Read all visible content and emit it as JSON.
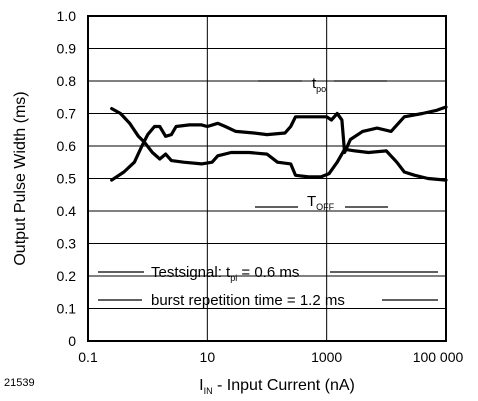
{
  "figure_id": "21539",
  "chart_data": {
    "type": "line",
    "title": "",
    "xlabel": {
      "main": "I",
      "sub": "IN",
      "rest": " - Input Current (nA)"
    },
    "ylabel": "Output Pulse Width (ms)",
    "x_scale": "log",
    "xlim": [
      0.1,
      100000
    ],
    "ylim": [
      0,
      1.0
    ],
    "x_ticks": [
      {
        "value": 0.1,
        "label": "0.1"
      },
      {
        "value": 10,
        "label": "10"
      },
      {
        "value": 1000,
        "label": "1000"
      },
      {
        "value": 100000,
        "label": "100 000"
      }
    ],
    "y_ticks": [
      {
        "value": 0,
        "label": "0"
      },
      {
        "value": 0.1,
        "label": "0.1"
      },
      {
        "value": 0.2,
        "label": "0.2"
      },
      {
        "value": 0.3,
        "label": "0.3"
      },
      {
        "value": 0.4,
        "label": "0.4"
      },
      {
        "value": 0.5,
        "label": "0.5"
      },
      {
        "value": 0.6,
        "label": "0.6"
      },
      {
        "value": 0.7,
        "label": "0.7"
      },
      {
        "value": 0.8,
        "label": "0.8"
      },
      {
        "value": 0.9,
        "label": "0.9"
      },
      {
        "value": 1.0,
        "label": "1.0"
      }
    ],
    "grid": true,
    "series": [
      {
        "label": {
          "main": "t",
          "sub": "po"
        },
        "points": [
          [
            0.25,
            0.495
          ],
          [
            0.4,
            0.52
          ],
          [
            0.6,
            0.55
          ],
          [
            0.8,
            0.6
          ],
          [
            1.0,
            0.635
          ],
          [
            1.3,
            0.66
          ],
          [
            1.6,
            0.66
          ],
          [
            2.0,
            0.63
          ],
          [
            2.5,
            0.635
          ],
          [
            3.0,
            0.66
          ],
          [
            5.0,
            0.665
          ],
          [
            8.0,
            0.665
          ],
          [
            10.0,
            0.66
          ],
          [
            15.0,
            0.67
          ],
          [
            20.0,
            0.66
          ],
          [
            30.0,
            0.645
          ],
          [
            60.0,
            0.64
          ],
          [
            100.0,
            0.635
          ],
          [
            200.0,
            0.64
          ],
          [
            250.0,
            0.66
          ],
          [
            300.0,
            0.69
          ],
          [
            600.0,
            0.69
          ],
          [
            1000.0,
            0.69
          ],
          [
            1200.0,
            0.68
          ],
          [
            1500.0,
            0.7
          ],
          [
            1800.0,
            0.68
          ],
          [
            2000.0,
            0.58
          ],
          [
            2500.0,
            0.62
          ],
          [
            4000.0,
            0.645
          ],
          [
            7000.0,
            0.655
          ],
          [
            12000.0,
            0.645
          ],
          [
            20000.0,
            0.69
          ],
          [
            40000.0,
            0.7
          ],
          [
            70000.0,
            0.71
          ],
          [
            100000.0,
            0.72
          ]
        ]
      },
      {
        "label": {
          "main": "T",
          "sub": "OFF"
        },
        "points": [
          [
            0.25,
            0.715
          ],
          [
            0.35,
            0.7
          ],
          [
            0.5,
            0.67
          ],
          [
            0.7,
            0.63
          ],
          [
            0.9,
            0.61
          ],
          [
            1.2,
            0.58
          ],
          [
            1.6,
            0.56
          ],
          [
            2.0,
            0.575
          ],
          [
            2.5,
            0.555
          ],
          [
            4.0,
            0.55
          ],
          [
            8.0,
            0.545
          ],
          [
            12.0,
            0.55
          ],
          [
            15.0,
            0.57
          ],
          [
            25.0,
            0.58
          ],
          [
            50.0,
            0.58
          ],
          [
            100.0,
            0.575
          ],
          [
            150.0,
            0.55
          ],
          [
            250.0,
            0.545
          ],
          [
            300.0,
            0.51
          ],
          [
            500.0,
            0.505
          ],
          [
            800.0,
            0.505
          ],
          [
            1100.0,
            0.515
          ],
          [
            1500.0,
            0.55
          ],
          [
            2000.0,
            0.59
          ],
          [
            3000.0,
            0.585
          ],
          [
            5000.0,
            0.58
          ],
          [
            10000.0,
            0.585
          ],
          [
            15000.0,
            0.55
          ],
          [
            20000.0,
            0.52
          ],
          [
            30000.0,
            0.51
          ],
          [
            50000.0,
            0.5
          ],
          [
            100000.0,
            0.495
          ]
        ]
      }
    ],
    "annotations": [
      {
        "main": "Testsignal: t",
        "sub": "pi",
        "rest": " = 0.6 ms"
      },
      {
        "main": "burst repetition time = 1.2 ms"
      }
    ]
  }
}
